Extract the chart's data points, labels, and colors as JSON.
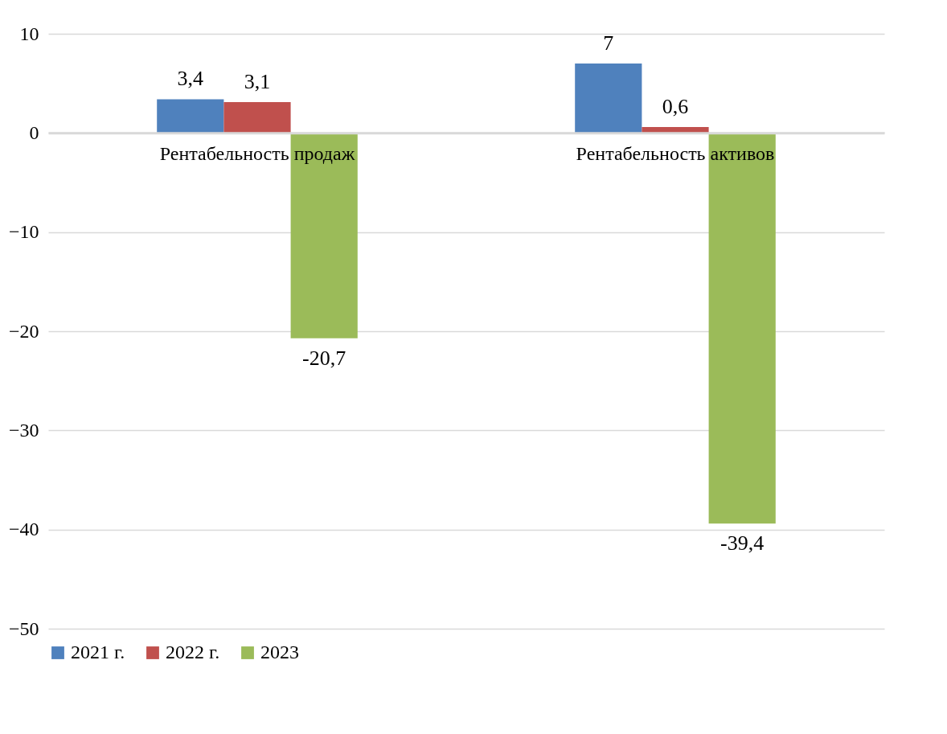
{
  "chart_data": {
    "type": "bar",
    "categories": [
      "Рентабельность продаж",
      "Рентабельность активов"
    ],
    "series": [
      {
        "name": "2021 г.",
        "color": "#4f81bd",
        "values": [
          3.4,
          7
        ],
        "value_labels": [
          "3,4",
          "7"
        ]
      },
      {
        "name": "2022 г.",
        "color": "#c0504d",
        "values": [
          3.1,
          0.6
        ],
        "value_labels": [
          "3,1",
          "0,6"
        ]
      },
      {
        "name": "2023",
        "color": "#9bbb59",
        "values": [
          -20.7,
          -39.4
        ],
        "value_labels": [
          "-20,7",
          "-39,4"
        ]
      }
    ],
    "ylim": [
      -50,
      10
    ],
    "yticks": [
      -50,
      -40,
      -30,
      -20,
      -10,
      0,
      10
    ],
    "grid": "y",
    "legend": "bottom"
  }
}
